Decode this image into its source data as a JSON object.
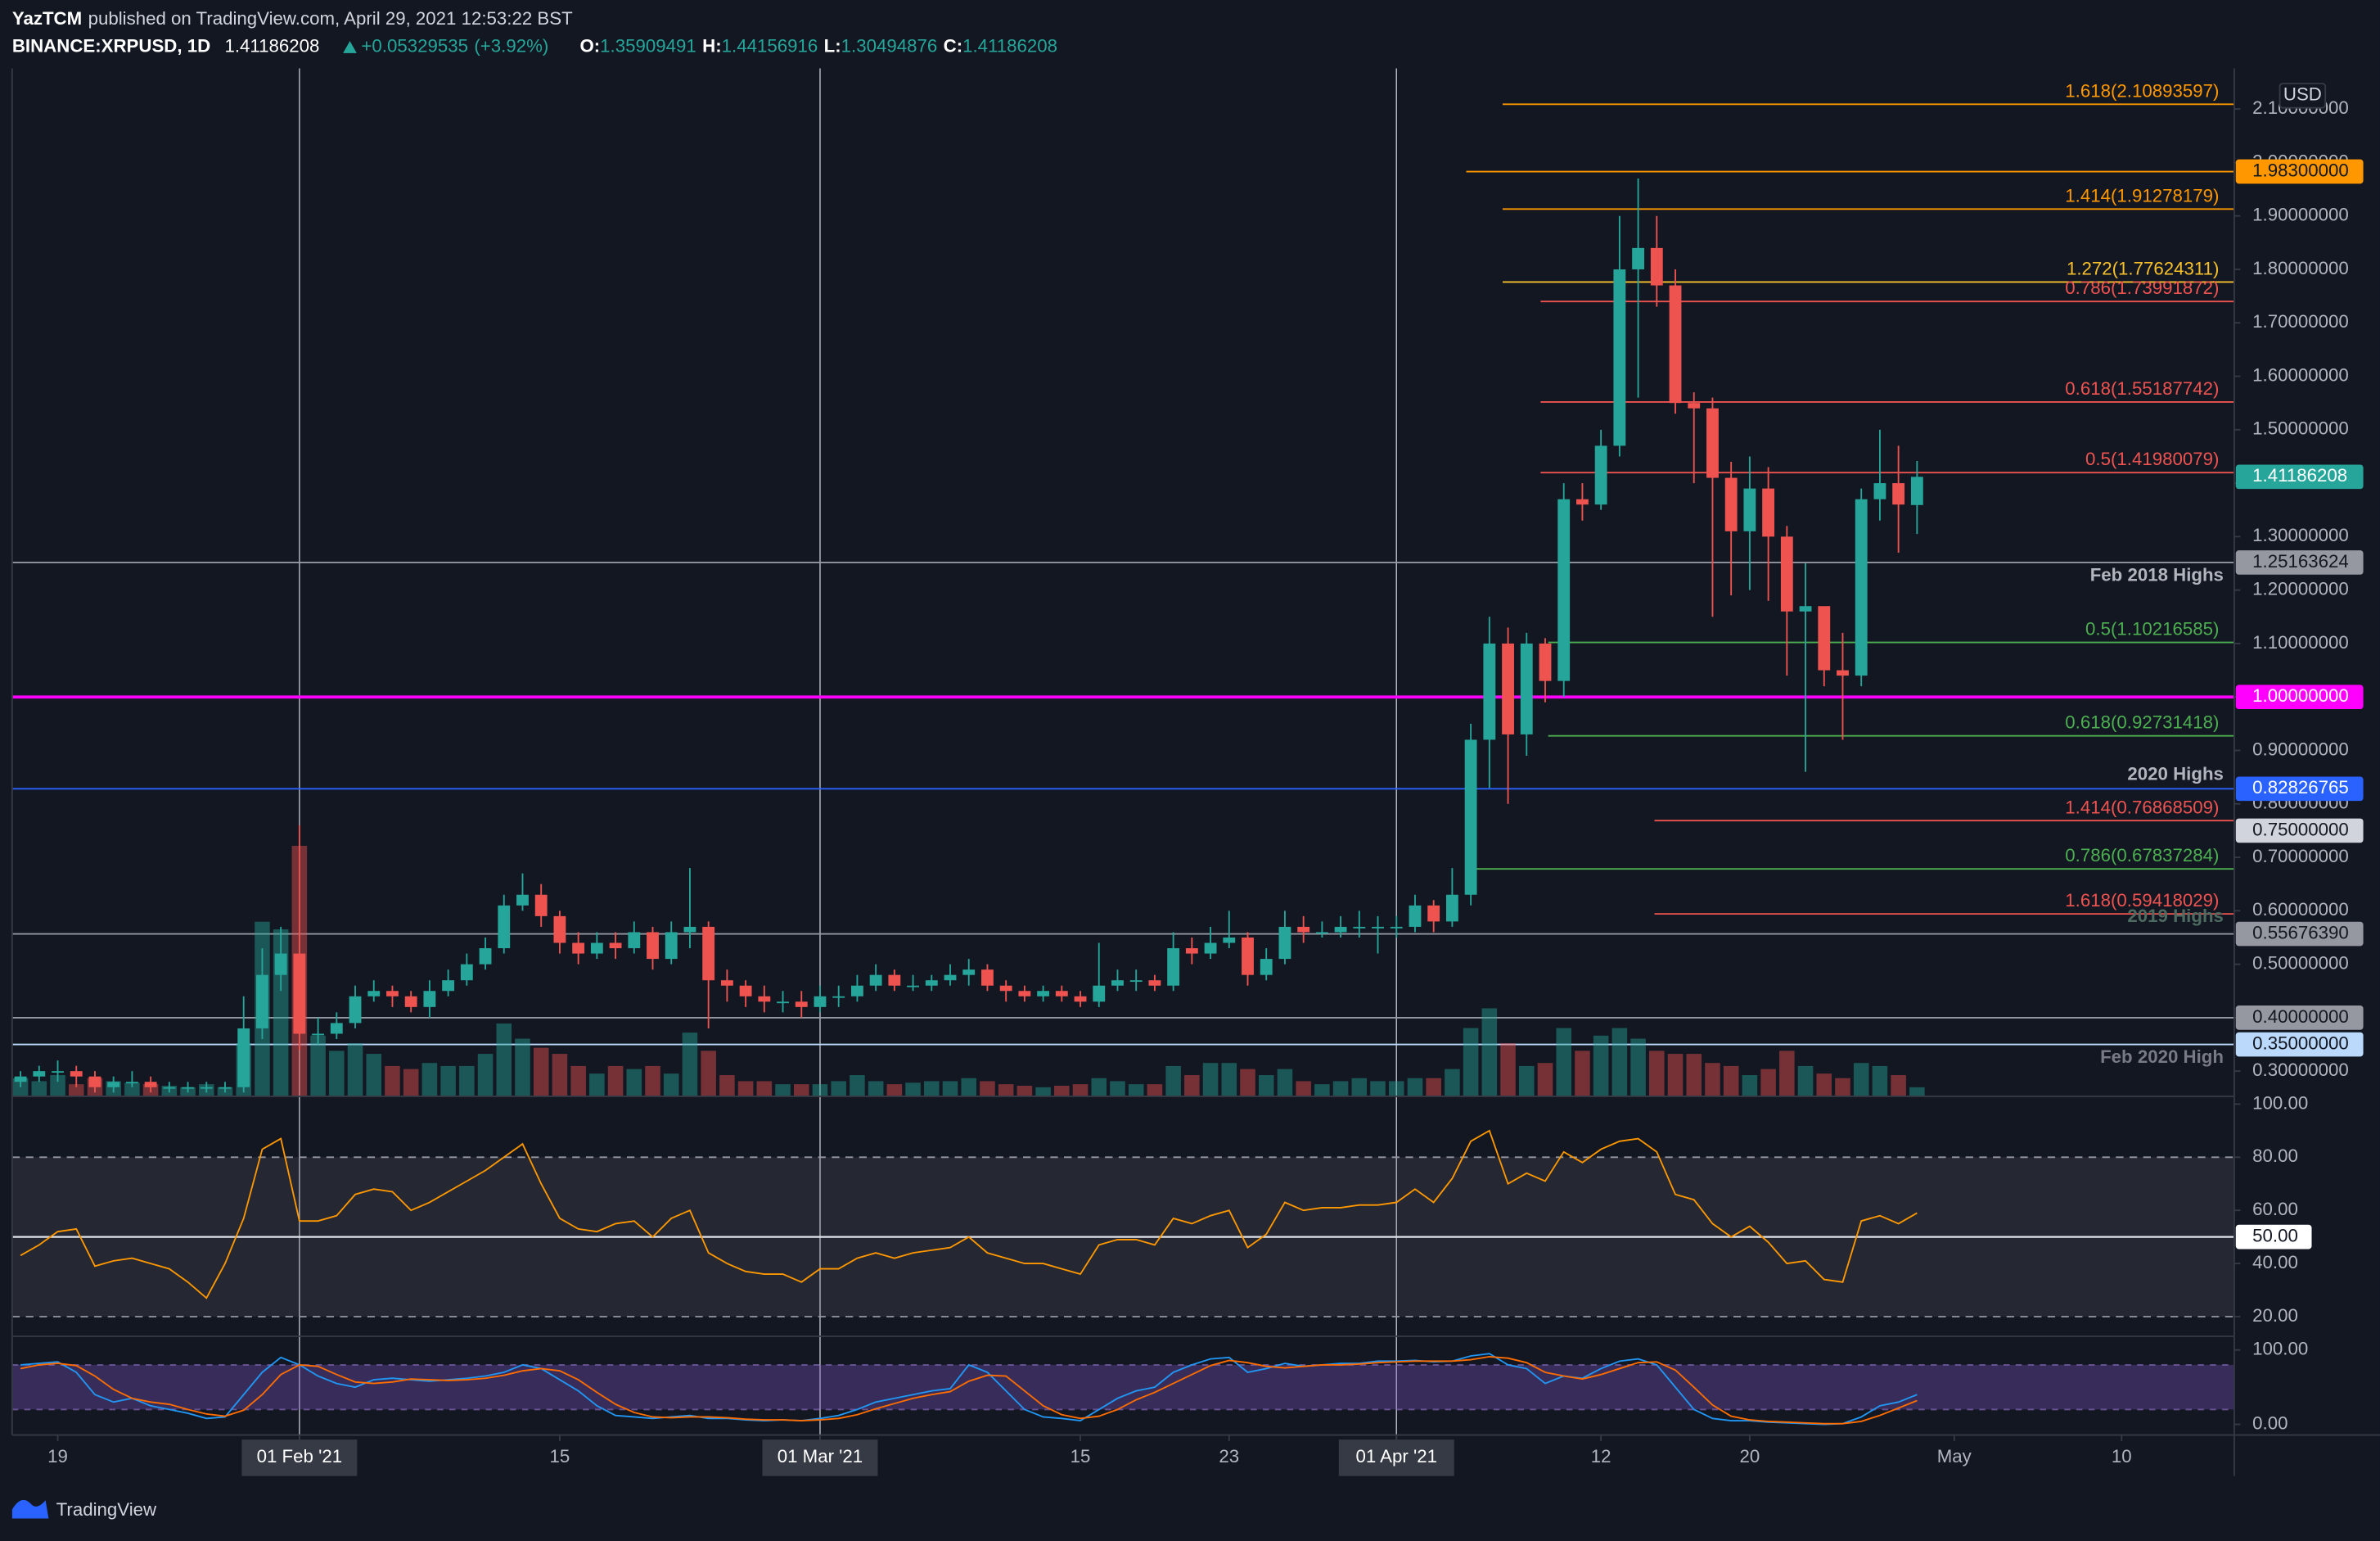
{
  "header": {
    "author": "YazTCM",
    "published": "published on TradingView.com, April 29, 2021 12:53:22 BST",
    "symbol": "BINANCE:XRPUSD, 1D",
    "change": {
      "value": 0.05329535,
      "label": "+0.05329535"
    },
    "change_pct": {
      "value": 3.92,
      "label": "(+3.92%)"
    },
    "ohlc_labels": [
      "O:",
      "H:",
      "L:",
      "C:"
    ]
  },
  "footer": {
    "brand": "TradingView"
  },
  "chart_data": {
    "type": "candlestick",
    "axis_unit": "USD",
    "up_color": "#26a69a",
    "down_color": "#ef5350",
    "open": [
      0.28,
      0.29,
      0.3,
      0.3,
      0.29,
      0.27,
      0.28,
      0.28,
      0.27,
      0.27,
      0.27,
      0.27,
      0.27,
      0.38,
      0.48,
      0.52,
      0.37,
      0.37,
      0.39,
      0.44,
      0.45,
      0.44,
      0.42,
      0.45,
      0.47,
      0.5,
      0.53,
      0.61,
      0.63,
      0.59,
      0.54,
      0.52,
      0.54,
      0.53,
      0.56,
      0.51,
      0.56,
      0.57,
      0.47,
      0.46,
      0.44,
      0.43,
      0.43,
      0.42,
      0.44,
      0.44,
      0.46,
      0.48,
      0.46,
      0.46,
      0.47,
      0.48,
      0.49,
      0.46,
      0.45,
      0.44,
      0.45,
      0.44,
      0.43,
      0.46,
      0.47,
      0.47,
      0.46,
      0.53,
      0.52,
      0.54,
      0.55,
      0.48,
      0.51,
      0.57,
      0.56,
      0.56,
      0.57,
      0.57,
      0.57,
      0.57,
      0.61,
      0.58,
      0.63,
      0.92,
      1.1,
      0.93,
      1.1,
      1.03,
      1.37,
      1.36,
      1.47,
      1.8,
      1.84,
      1.77,
      1.55,
      1.54,
      1.41,
      1.31,
      1.39,
      1.3,
      1.16,
      1.17,
      1.05,
      1.04,
      1.37,
      1.4,
      1.35909491
    ],
    "high": [
      0.3,
      0.31,
      0.32,
      0.31,
      0.3,
      0.29,
      0.3,
      0.29,
      0.28,
      0.28,
      0.28,
      0.28,
      0.44,
      0.53,
      0.57,
      0.76,
      0.4,
      0.41,
      0.46,
      0.47,
      0.46,
      0.45,
      0.47,
      0.49,
      0.52,
      0.55,
      0.63,
      0.67,
      0.65,
      0.6,
      0.56,
      0.56,
      0.56,
      0.58,
      0.57,
      0.58,
      0.68,
      0.58,
      0.49,
      0.47,
      0.46,
      0.45,
      0.45,
      0.46,
      0.46,
      0.48,
      0.5,
      0.49,
      0.48,
      0.48,
      0.5,
      0.51,
      0.5,
      0.47,
      0.46,
      0.46,
      0.46,
      0.45,
      0.54,
      0.49,
      0.49,
      0.48,
      0.56,
      0.55,
      0.57,
      0.6,
      0.56,
      0.53,
      0.6,
      0.59,
      0.58,
      0.59,
      0.6,
      0.59,
      0.59,
      0.63,
      0.62,
      0.68,
      0.95,
      1.15,
      1.13,
      1.12,
      1.11,
      1.4,
      1.4,
      1.5,
      1.9,
      1.97,
      1.9,
      1.8,
      1.57,
      1.56,
      1.44,
      1.45,
      1.43,
      1.32,
      1.25,
      1.16,
      1.12,
      1.39,
      1.5,
      1.47,
      1.44156916
    ],
    "low": [
      0.27,
      0.28,
      0.28,
      0.27,
      0.26,
      0.26,
      0.27,
      0.26,
      0.26,
      0.26,
      0.26,
      0.26,
      0.26,
      0.36,
      0.45,
      0.34,
      0.35,
      0.36,
      0.38,
      0.43,
      0.42,
      0.41,
      0.4,
      0.44,
      0.46,
      0.49,
      0.52,
      0.6,
      0.57,
      0.52,
      0.5,
      0.51,
      0.51,
      0.52,
      0.49,
      0.5,
      0.53,
      0.38,
      0.43,
      0.42,
      0.41,
      0.41,
      0.4,
      0.41,
      0.42,
      0.43,
      0.45,
      0.45,
      0.45,
      0.45,
      0.46,
      0.46,
      0.45,
      0.43,
      0.43,
      0.43,
      0.43,
      0.42,
      0.42,
      0.45,
      0.45,
      0.45,
      0.45,
      0.5,
      0.51,
      0.53,
      0.46,
      0.47,
      0.5,
      0.54,
      0.55,
      0.55,
      0.55,
      0.52,
      0.55,
      0.56,
      0.56,
      0.57,
      0.61,
      0.83,
      0.8,
      0.89,
      0.99,
      1.0,
      1.33,
      1.35,
      1.45,
      1.56,
      1.73,
      1.53,
      1.4,
      1.15,
      1.19,
      1.2,
      1.18,
      1.04,
      0.86,
      1.02,
      0.92,
      1.02,
      1.33,
      1.27,
      1.30494876
    ],
    "close": [
      0.29,
      0.3,
      0.3,
      0.29,
      0.27,
      0.28,
      0.28,
      0.27,
      0.27,
      0.27,
      0.27,
      0.27,
      0.38,
      0.48,
      0.52,
      0.37,
      0.37,
      0.39,
      0.44,
      0.45,
      0.44,
      0.42,
      0.45,
      0.47,
      0.5,
      0.53,
      0.61,
      0.63,
      0.59,
      0.54,
      0.52,
      0.54,
      0.53,
      0.56,
      0.51,
      0.56,
      0.57,
      0.47,
      0.46,
      0.44,
      0.43,
      0.43,
      0.42,
      0.44,
      0.44,
      0.46,
      0.48,
      0.46,
      0.46,
      0.47,
      0.48,
      0.49,
      0.46,
      0.45,
      0.44,
      0.45,
      0.44,
      0.43,
      0.46,
      0.47,
      0.47,
      0.46,
      0.53,
      0.52,
      0.54,
      0.55,
      0.48,
      0.51,
      0.57,
      0.56,
      0.56,
      0.57,
      0.57,
      0.57,
      0.57,
      0.61,
      0.58,
      0.63,
      0.92,
      1.1,
      0.93,
      1.1,
      1.03,
      1.37,
      1.36,
      1.47,
      1.8,
      1.84,
      1.77,
      1.55,
      1.54,
      1.41,
      1.31,
      1.39,
      1.3,
      1.16,
      1.17,
      1.05,
      1.04,
      1.37,
      1.4,
      1.36,
      1.41186208
    ],
    "volume": [
      12,
      10,
      14,
      8,
      12,
      10,
      9,
      8,
      7,
      6,
      8,
      6,
      35,
      115,
      110,
      165,
      40,
      30,
      35,
      28,
      20,
      18,
      22,
      20,
      20,
      28,
      48,
      38,
      32,
      28,
      20,
      15,
      20,
      18,
      20,
      15,
      42,
      30,
      14,
      10,
      10,
      8,
      8,
      8,
      10,
      14,
      10,
      8,
      9,
      10,
      10,
      12,
      10,
      8,
      7,
      6,
      7,
      8,
      12,
      10,
      8,
      8,
      20,
      14,
      22,
      22,
      18,
      14,
      18,
      10,
      8,
      10,
      12,
      10,
      10,
      12,
      12,
      18,
      45,
      58,
      35,
      20,
      22,
      45,
      30,
      40,
      45,
      38,
      30,
      28,
      28,
      22,
      20,
      14,
      18,
      30,
      20,
      15,
      12,
      22,
      20,
      14,
      6
    ],
    "xlim": [
      -0.45,
      119.06
    ],
    "xticks": [
      {
        "value": 2,
        "label": "19"
      },
      {
        "value": 15,
        "label": "01 Feb '21",
        "vline": true
      },
      {
        "value": 29,
        "label": "15"
      },
      {
        "value": 43,
        "label": "01 Mar '21",
        "vline": true
      },
      {
        "value": 57,
        "label": "15"
      },
      {
        "value": 65,
        "label": "23"
      },
      {
        "value": 74,
        "label": "01 Apr '21",
        "vline": true
      },
      {
        "value": 85,
        "label": "12"
      },
      {
        "value": 93,
        "label": "20"
      },
      {
        "value": 104,
        "label": "May"
      },
      {
        "value": 113,
        "label": "10"
      }
    ],
    "ylim": [
      0.2528,
      2.1761
    ],
    "yticks": [
      {
        "value": 0.3,
        "label": "0.30000000"
      },
      {
        "value": 0.4,
        "label": "0.40000000"
      },
      {
        "value": 0.5,
        "label": "0.50000000"
      },
      {
        "value": 0.6,
        "label": "0.60000000"
      },
      {
        "value": 0.7,
        "label": "0.70000000"
      },
      {
        "value": 0.8,
        "label": "0.80000000"
      },
      {
        "value": 0.9,
        "label": "0.90000000"
      },
      {
        "value": 1.0,
        "label": "1.00000000"
      },
      {
        "value": 1.1,
        "label": "1.10000000"
      },
      {
        "value": 1.2,
        "label": "1.20000000"
      },
      {
        "value": 1.3,
        "label": "1.30000000"
      },
      {
        "value": 1.4,
        "label": "1.40000000"
      },
      {
        "value": 1.5,
        "label": "1.50000000"
      },
      {
        "value": 1.6,
        "label": "1.60000000"
      },
      {
        "value": 1.7,
        "label": "1.70000000"
      },
      {
        "value": 1.8,
        "label": "1.80000000"
      },
      {
        "value": 1.9,
        "label": "1.90000000"
      },
      {
        "value": 2.0,
        "label": "2.00000000"
      },
      {
        "value": 2.1,
        "label": "2.10000000"
      }
    ],
    "fib_levels": [
      {
        "label": "1.618(2.10893597)",
        "value": 2.10893597,
        "color": "#ff9800"
      },
      {
        "label": "1.414(1.91278179)",
        "value": 1.91278179,
        "color": "#ff9800"
      },
      {
        "label": "1.272(1.77624311)",
        "value": 1.77624311,
        "color": "#f7c02b"
      },
      {
        "label": "0.786(1.73991872)",
        "value": 1.73991872,
        "color": "#ef5350"
      },
      {
        "label": "0.618(1.55187742)",
        "value": 1.55187742,
        "color": "#ef5350"
      },
      {
        "label": "0.5(1.41980079)",
        "value": 1.41980079,
        "color": "#ef5350"
      },
      {
        "label": "0.5(1.10216585)",
        "value": 1.10216585,
        "color": "#4caf50"
      },
      {
        "label": "0.618(0.92731418)",
        "value": 0.92731418,
        "color": "#4caf50"
      },
      {
        "label": "1.414(0.76868509)",
        "value": 0.76868509,
        "color": "#ef5350"
      },
      {
        "label": "0.786(0.67837284)",
        "value": 0.67837284,
        "color": "#4caf50"
      },
      {
        "label": "1.618(0.59418029)",
        "value": 0.59418029,
        "color": "#ef5350"
      }
    ],
    "hlines": [
      {
        "value": 1.983,
        "label": "1.98300000",
        "color": "#ff9800"
      },
      {
        "value": 1.25163624,
        "label": "1.25163624",
        "caption": "Feb 2018 Highs",
        "color": "#9598a1"
      },
      {
        "value": 1,
        "label": "1.00000000",
        "color": "#ff00ff"
      },
      {
        "value": 0.82826765,
        "label": "0.82826765",
        "caption": "2020 Highs",
        "color": "#2962ff"
      },
      {
        "value": 0.75,
        "label": "0.75000000",
        "color": "#d1d4dc",
        "line": false
      },
      {
        "value": 0.5567639,
        "label": "0.55676390",
        "caption": "2019 Highs",
        "color": "#9598a1"
      },
      {
        "value": 0.4,
        "label": "0.40000000",
        "color": "#9598a1"
      },
      {
        "value": 0.35,
        "label": "0.35000000",
        "caption": "Feb 2020 High",
        "color": "#bbd9fb"
      }
    ],
    "rsi": {
      "color": "#ff9800",
      "values": [
        43,
        47,
        52,
        53,
        39,
        41,
        42,
        40,
        38,
        33,
        27,
        40,
        57,
        83,
        87,
        56,
        56,
        58,
        66,
        68,
        67,
        60,
        63,
        67,
        71,
        75,
        80,
        85,
        70,
        57,
        53,
        52,
        55,
        56,
        50,
        57,
        60,
        44,
        40,
        37,
        36,
        36,
        33,
        38,
        38,
        42,
        44,
        42,
        44,
        45,
        46,
        50,
        44,
        42,
        40,
        40,
        38,
        36,
        47,
        49,
        49,
        47,
        57,
        55,
        58,
        60,
        46,
        51,
        63,
        60,
        61,
        61,
        62,
        62,
        63,
        68,
        63,
        72,
        86,
        90,
        70,
        74,
        71,
        82,
        78,
        83,
        86,
        87,
        82,
        66,
        64,
        55,
        50,
        54,
        48,
        40,
        41,
        34,
        33,
        56,
        58,
        55,
        59
      ],
      "ylim": [
        12.6,
        102.9
      ],
      "yticks": [
        {
          "value": 20,
          "label": "20.00"
        },
        {
          "value": 40,
          "label": "40.00"
        },
        {
          "value": 60,
          "label": "60.00"
        },
        {
          "value": 80,
          "label": "80.00"
        },
        {
          "value": 100,
          "label": "100.00"
        }
      ],
      "upper": 80,
      "lower": 20,
      "mid": {
        "value": 50,
        "label": "50.00"
      }
    },
    "stoch_rsi": {
      "series": [
        {
          "color": "#2196f3",
          "values": [
            80,
            82,
            84,
            70,
            40,
            30,
            35,
            25,
            20,
            15,
            8,
            10,
            40,
            70,
            90,
            80,
            65,
            55,
            50,
            60,
            62,
            60,
            58,
            60,
            62,
            65,
            70,
            80,
            75,
            60,
            45,
            25,
            12,
            10,
            8,
            10,
            12,
            8,
            8,
            6,
            5,
            6,
            5,
            8,
            12,
            20,
            30,
            35,
            40,
            45,
            48,
            80,
            70,
            45,
            20,
            10,
            8,
            5,
            20,
            35,
            45,
            50,
            70,
            80,
            88,
            90,
            70,
            75,
            82,
            78,
            80,
            82,
            82,
            85,
            85,
            86,
            84,
            85,
            92,
            95,
            80,
            75,
            55,
            65,
            62,
            75,
            85,
            88,
            80,
            50,
            20,
            8,
            5,
            5,
            3,
            2,
            1,
            0,
            1,
            10,
            25,
            30,
            40
          ]
        },
        {
          "color": "#ff6d00",
          "values": [
            75,
            80,
            82,
            79,
            65,
            47,
            35,
            30,
            27,
            20,
            14,
            11,
            19,
            40,
            67,
            80,
            78,
            67,
            57,
            55,
            57,
            61,
            60,
            59,
            60,
            62,
            66,
            72,
            75,
            72,
            60,
            43,
            27,
            16,
            10,
            9,
            10,
            10,
            9,
            7,
            6,
            6,
            5,
            6,
            8,
            13,
            21,
            28,
            35,
            40,
            44,
            58,
            66,
            65,
            45,
            25,
            13,
            8,
            11,
            20,
            33,
            43,
            55,
            67,
            79,
            86,
            83,
            78,
            76,
            78,
            80,
            80,
            81,
            83,
            84,
            85,
            85,
            85,
            87,
            91,
            89,
            83,
            70,
            65,
            61,
            67,
            75,
            83,
            84,
            73,
            50,
            26,
            11,
            6,
            4,
            3,
            2,
            1,
            1,
            4,
            12,
            22,
            32
          ]
        }
      ],
      "ylim": [
        -14.3,
        118.4
      ],
      "yticks": [
        {
          "value": 0,
          "label": "0.00"
        },
        {
          "value": 100,
          "label": "100.00"
        }
      ],
      "upper": 80,
      "lower": 20
    }
  }
}
